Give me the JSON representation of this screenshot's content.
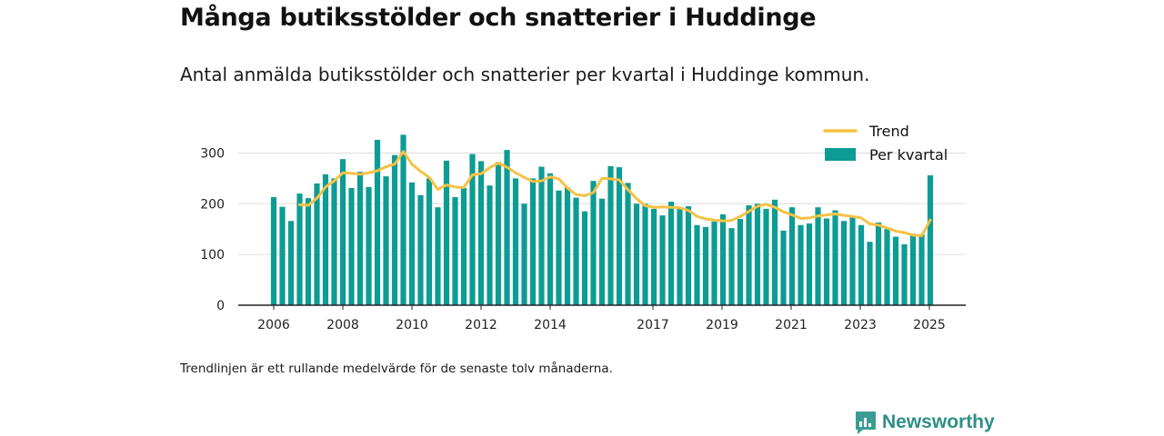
{
  "header": {
    "title": "Många butiksstölder och snatterier i Huddinge",
    "subtitle": "Antal anmälda butiksstölder och snatterier per kvartal i Huddinge kommun."
  },
  "footnote": "Trendlinjen är ett rullande medelvärde för de senaste tolv månaderna.",
  "brand": {
    "name": "Newsworthy",
    "icon": "newsworthy-logo-icon"
  },
  "colors": {
    "bar": "#0d9c94",
    "trend": "#f6c244",
    "grid": "#dddddd",
    "axis": "#222222"
  },
  "chart_data": {
    "type": "bar",
    "x_tick_labels": [
      "2006",
      "2008",
      "2010",
      "2012",
      "2014",
      "2017",
      "2019",
      "2021",
      "2023",
      "2025"
    ],
    "y_ticks": [
      0,
      100,
      200,
      300
    ],
    "ylim": [
      0,
      340
    ],
    "grid": true,
    "legend_position": "top-right",
    "series": [
      {
        "name": "Per kvartal",
        "kind": "bar",
        "values": [
          213,
          194,
          166,
          220,
          211,
          240,
          258,
          250,
          288,
          231,
          263,
          233,
          326,
          254,
          296,
          336,
          242,
          217,
          250,
          193,
          285,
          213,
          231,
          298,
          284,
          236,
          282,
          306,
          250,
          200,
          250,
          273,
          260,
          226,
          232,
          212,
          185,
          245,
          210,
          274,
          272,
          241,
          200,
          200,
          190,
          177,
          204,
          190,
          195,
          158,
          154,
          165,
          179,
          152,
          170,
          197,
          200,
          190,
          208,
          147,
          193,
          158,
          161,
          193,
          171,
          187,
          166,
          173,
          158,
          125,
          163,
          150,
          135,
          120,
          141,
          140,
          256
        ]
      },
      {
        "name": "Trend",
        "kind": "line",
        "values": [
          null,
          null,
          null,
          198,
          197,
          211,
          233,
          245,
          261,
          260,
          258,
          261,
          265,
          273,
          278,
          303,
          278,
          264,
          252,
          228,
          237,
          233,
          232,
          257,
          259,
          271,
          280,
          272,
          261,
          252,
          244,
          245,
          253,
          249,
          231,
          218,
          216,
          222,
          250,
          249,
          247,
          228,
          210,
          196,
          193,
          194,
          193,
          192,
          187,
          175,
          170,
          168,
          166,
          167,
          175,
          185,
          195,
          199,
          193,
          184,
          178,
          171,
          172,
          176,
          178,
          180,
          177,
          175,
          172,
          160,
          158,
          152,
          146,
          143,
          138,
          137,
          168
        ]
      }
    ]
  }
}
